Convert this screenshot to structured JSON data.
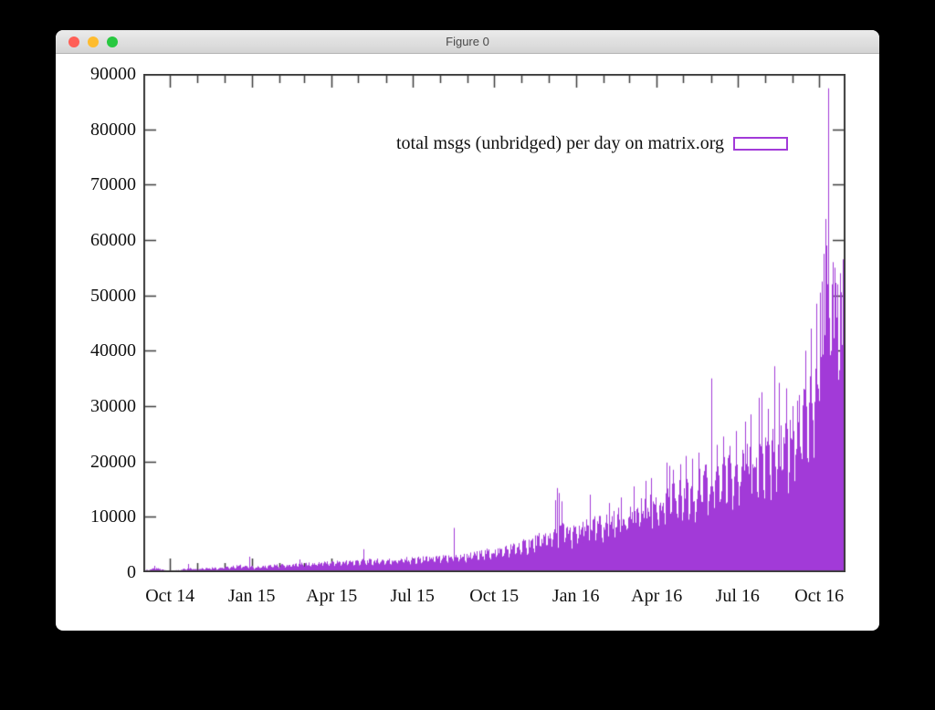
{
  "window": {
    "title": "Figure 0",
    "traffic_lights": [
      {
        "name": "close",
        "color": "#ff5f57"
      },
      {
        "name": "minimize",
        "color": "#febc2e"
      },
      {
        "name": "zoom",
        "color": "#28c840"
      }
    ],
    "titlebar_colors": {
      "top": "#ebebeb",
      "bottom": "#d4d4d4"
    }
  },
  "chart_data": {
    "type": "bar",
    "title": "",
    "legend_label": "total msgs (unbridged) per day on matrix.org",
    "legend_position": "top-right",
    "grid": false,
    "bar_color": "#a23ad8",
    "axis_color": "#3c3c3c",
    "xlabel": "",
    "ylabel": "",
    "x_start": "2014-09-01",
    "x_end": "2016-10-31",
    "ylim": [
      0,
      90000
    ],
    "y_ticks": [
      {
        "value": 90000,
        "label": "90000"
      },
      {
        "value": 80000,
        "label": "80000"
      },
      {
        "value": 70000,
        "label": "70000"
      },
      {
        "value": 60000,
        "label": "60000"
      },
      {
        "value": 50000,
        "label": "50000"
      },
      {
        "value": 40000,
        "label": "40000"
      },
      {
        "value": 30000,
        "label": "30000"
      },
      {
        "value": 20000,
        "label": "20000"
      },
      {
        "value": 10000,
        "label": "10000"
      },
      {
        "value": 0,
        "label": "0"
      }
    ],
    "x_major_ticks": [
      {
        "day": 30,
        "label": "Oct 14"
      },
      {
        "day": 122,
        "label": "Jan 15"
      },
      {
        "day": 212,
        "label": "Apr 15"
      },
      {
        "day": 303,
        "label": "Jul 15"
      },
      {
        "day": 395,
        "label": "Oct 15"
      },
      {
        "day": 487,
        "label": "Jan 16"
      },
      {
        "day": 578,
        "label": "Apr 16"
      },
      {
        "day": 669,
        "label": "Jul 16"
      },
      {
        "day": 761,
        "label": "Oct 16"
      }
    ],
    "x_minor_tick_days": [
      30,
      61,
      91,
      122,
      153,
      181,
      212,
      242,
      273,
      303,
      334,
      365,
      395,
      426,
      456,
      487,
      518,
      547,
      578,
      608,
      639,
      669,
      700,
      731,
      761
    ],
    "days_total": 791,
    "series": [
      {
        "name": "total msgs (unbridged) per day on matrix.org",
        "unit": "messages per day",
        "weekly_anchors": [
          [
            0,
            350
          ],
          [
            7,
            550
          ],
          [
            14,
            700
          ],
          [
            21,
            500
          ],
          [
            28,
            320
          ],
          [
            35,
            280
          ],
          [
            42,
            450
          ],
          [
            49,
            800
          ],
          [
            56,
            600
          ],
          [
            63,
            700
          ],
          [
            70,
            800
          ],
          [
            77,
            850
          ],
          [
            84,
            800
          ],
          [
            91,
            900
          ],
          [
            98,
            1000
          ],
          [
            105,
            1150
          ],
          [
            112,
            1250
          ],
          [
            119,
            1100
          ],
          [
            126,
            950
          ],
          [
            133,
            1050
          ],
          [
            140,
            1150
          ],
          [
            147,
            1250
          ],
          [
            154,
            1300
          ],
          [
            161,
            1350
          ],
          [
            168,
            1400
          ],
          [
            175,
            1500
          ],
          [
            182,
            1550
          ],
          [
            189,
            1600
          ],
          [
            196,
            1700
          ],
          [
            203,
            1750
          ],
          [
            210,
            1800
          ],
          [
            217,
            1900
          ],
          [
            224,
            1950
          ],
          [
            231,
            2000
          ],
          [
            238,
            2050
          ],
          [
            245,
            2150
          ],
          [
            252,
            2100
          ],
          [
            259,
            2150
          ],
          [
            266,
            2200
          ],
          [
            273,
            2250
          ],
          [
            280,
            2300
          ],
          [
            287,
            2350
          ],
          [
            294,
            2400
          ],
          [
            301,
            2450
          ],
          [
            308,
            2500
          ],
          [
            315,
            2550
          ],
          [
            322,
            2600
          ],
          [
            329,
            2650
          ],
          [
            336,
            2700
          ],
          [
            343,
            2800
          ],
          [
            350,
            2900
          ],
          [
            357,
            3000
          ],
          [
            364,
            3100
          ],
          [
            371,
            3300
          ],
          [
            378,
            3500
          ],
          [
            385,
            3700
          ],
          [
            392,
            3900
          ],
          [
            399,
            4100
          ],
          [
            406,
            4300
          ],
          [
            413,
            4600
          ],
          [
            420,
            4900
          ],
          [
            427,
            5200
          ],
          [
            434,
            5600
          ],
          [
            441,
            6000
          ],
          [
            448,
            6400
          ],
          [
            455,
            6900
          ],
          [
            462,
            7600
          ],
          [
            469,
            8200
          ],
          [
            476,
            8100
          ],
          [
            483,
            7600
          ],
          [
            490,
            7900
          ],
          [
            497,
            8300
          ],
          [
            504,
            8700
          ],
          [
            511,
            9100
          ],
          [
            518,
            9400
          ],
          [
            525,
            9700
          ],
          [
            532,
            10100
          ],
          [
            539,
            10500
          ],
          [
            546,
            10900
          ],
          [
            553,
            11300
          ],
          [
            560,
            11800
          ],
          [
            567,
            12300
          ],
          [
            574,
            12800
          ],
          [
            581,
            13300
          ],
          [
            588,
            13900
          ],
          [
            595,
            14400
          ],
          [
            602,
            14900
          ],
          [
            609,
            15400
          ],
          [
            616,
            15900
          ],
          [
            623,
            16400
          ],
          [
            630,
            16900
          ],
          [
            637,
            17400
          ],
          [
            644,
            17900
          ],
          [
            651,
            18400
          ],
          [
            658,
            18900
          ],
          [
            665,
            19400
          ],
          [
            672,
            19900
          ],
          [
            679,
            20400
          ],
          [
            686,
            20900
          ],
          [
            693,
            21400
          ],
          [
            700,
            22000
          ],
          [
            707,
            22800
          ],
          [
            714,
            23800
          ],
          [
            721,
            24800
          ],
          [
            728,
            26000
          ],
          [
            735,
            27500
          ],
          [
            742,
            29500
          ],
          [
            749,
            32500
          ],
          [
            756,
            36500
          ],
          [
            763,
            42000
          ],
          [
            770,
            48000
          ],
          [
            777,
            52000
          ],
          [
            784,
            53000
          ],
          [
            790,
            51000
          ]
        ],
        "daily_spikes": [
          [
            12,
            1150
          ],
          [
            50,
            1480
          ],
          [
            119,
            2800
          ],
          [
            176,
            2300
          ],
          [
            248,
            4150
          ],
          [
            350,
            8000
          ],
          [
            464,
            13000
          ],
          [
            466,
            15200
          ],
          [
            468,
            14300
          ],
          [
            471,
            12800
          ],
          [
            503,
            14000
          ],
          [
            524,
            12500
          ],
          [
            538,
            13500
          ],
          [
            552,
            15500
          ],
          [
            565,
            16500
          ],
          [
            572,
            17000
          ],
          [
            589,
            19800
          ],
          [
            592,
            19200
          ],
          [
            596,
            18500
          ],
          [
            604,
            19500
          ],
          [
            611,
            21000
          ],
          [
            618,
            20500
          ],
          [
            625,
            21600
          ],
          [
            639,
            35000
          ],
          [
            646,
            23000
          ],
          [
            653,
            24500
          ],
          [
            660,
            22800
          ],
          [
            667,
            25500
          ],
          [
            677,
            27200
          ],
          [
            684,
            28500
          ],
          [
            693,
            31500
          ],
          [
            696,
            32500
          ],
          [
            703,
            29500
          ],
          [
            710,
            37200
          ],
          [
            716,
            34200
          ],
          [
            724,
            33200
          ],
          [
            731,
            30000
          ],
          [
            738,
            32000
          ],
          [
            745,
            40000
          ],
          [
            752,
            44000
          ],
          [
            758,
            48500
          ],
          [
            762,
            50500
          ],
          [
            764,
            52500
          ],
          [
            766,
            57500
          ],
          [
            768,
            63800
          ],
          [
            769,
            59000
          ],
          [
            771,
            87400
          ],
          [
            773,
            39200
          ],
          [
            775,
            52000
          ],
          [
            776,
            56000
          ],
          [
            778,
            55000
          ],
          [
            780,
            46000
          ],
          [
            781,
            52000
          ],
          [
            784,
            54000
          ],
          [
            787,
            56500
          ],
          [
            790,
            50000
          ]
        ],
        "weekend_dip_factor": 0.7
      }
    ]
  }
}
